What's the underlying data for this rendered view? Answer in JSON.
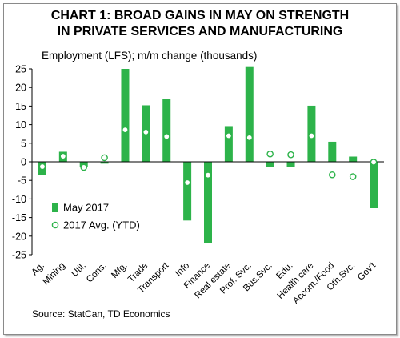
{
  "title_line1": "CHART 1: BROAD GAINS IN MAY ON STRENGTH",
  "title_line2": "IN PRIVATE SERVICES AND MANUFACTURING",
  "subtitle": "Employment (LFS); m/m change (thousands)",
  "source": "Source: StatCan, TD Economics",
  "colors": {
    "bar": "#2db34a",
    "marker": "#2db34a",
    "axis": "#000000"
  },
  "chart_data": {
    "type": "bar",
    "categories": [
      "Ag.",
      "Mining",
      "Util.",
      "Cons.",
      "Mfg.",
      "Trade",
      "Transport",
      "Info",
      "Finance",
      "Real estate",
      "Prof. Svc.",
      "Bus.Svc.",
      "Edu.",
      "Health care",
      "Accom./Food",
      "Oth.Svc.",
      "Gov't"
    ],
    "series": [
      {
        "name": "May 2017",
        "kind": "bar",
        "values": [
          -3.5,
          2.7,
          -1.5,
          -0.5,
          25.0,
          15.2,
          17.0,
          -15.8,
          -21.8,
          9.6,
          25.5,
          -1.5,
          -1.5,
          15.1,
          5.4,
          1.4,
          -12.5
        ]
      },
      {
        "name": "2017 Avg. (YTD)",
        "kind": "marker",
        "values": [
          -1.3,
          1.5,
          -1.5,
          1.1,
          8.6,
          8.0,
          6.8,
          -5.6,
          -3.6,
          7.0,
          6.5,
          2.1,
          1.9,
          7.0,
          -3.5,
          -4.0,
          -0.1
        ]
      }
    ],
    "yticks": [
      "25",
      "20",
      "15",
      "10",
      "5",
      "0",
      "-5",
      "-10",
      "-15",
      "-20",
      "-25"
    ],
    "ylim": [
      -25,
      25
    ],
    "grid": false,
    "legend_position": "bottom-left"
  }
}
